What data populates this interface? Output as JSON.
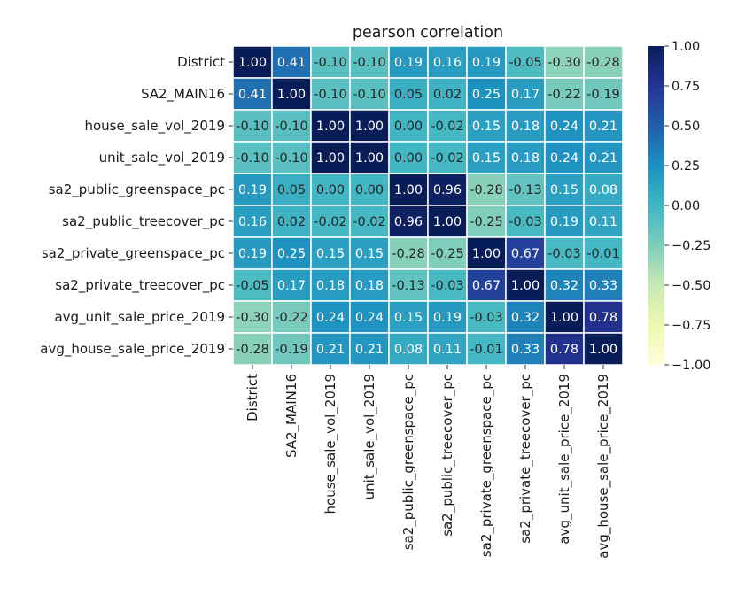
{
  "chart_data": {
    "type": "heatmap",
    "title": "pearson correlation",
    "variables": [
      "District",
      "SA2_MAIN16",
      "house_sale_vol_2019",
      "unit_sale_vol_2019",
      "sa2_public_greenspace_pc",
      "sa2_public_treecover_pc",
      "sa2_private_greenspace_pc",
      "sa2_private_treecover_pc",
      "avg_unit_sale_price_2019",
      "avg_house_sale_price_2019"
    ],
    "values": [
      [
        1.0,
        0.41,
        -0.1,
        -0.1,
        0.19,
        0.16,
        0.19,
        -0.05,
        -0.3,
        -0.28
      ],
      [
        0.41,
        1.0,
        -0.1,
        -0.1,
        0.05,
        0.02,
        0.25,
        0.17,
        -0.22,
        -0.19
      ],
      [
        -0.1,
        -0.1,
        1.0,
        1.0,
        0.0,
        -0.02,
        0.15,
        0.18,
        0.24,
        0.21
      ],
      [
        -0.1,
        -0.1,
        1.0,
        1.0,
        0.0,
        -0.02,
        0.15,
        0.18,
        0.24,
        0.21
      ],
      [
        0.19,
        0.05,
        0.0,
        0.0,
        1.0,
        0.96,
        -0.28,
        -0.13,
        0.15,
        0.08
      ],
      [
        0.16,
        0.02,
        -0.02,
        -0.02,
        0.96,
        1.0,
        -0.25,
        -0.03,
        0.19,
        0.11
      ],
      [
        0.19,
        0.25,
        0.15,
        0.15,
        -0.28,
        -0.25,
        1.0,
        0.67,
        -0.03,
        -0.01
      ],
      [
        -0.05,
        0.17,
        0.18,
        0.18,
        -0.13,
        -0.03,
        0.67,
        1.0,
        0.32,
        0.33
      ],
      [
        -0.3,
        -0.22,
        0.24,
        0.24,
        0.15,
        0.19,
        -0.03,
        0.32,
        1.0,
        0.78
      ],
      [
        -0.28,
        -0.19,
        0.21,
        0.21,
        0.08,
        0.11,
        -0.01,
        0.33,
        0.78,
        1.0
      ]
    ],
    "vmin": -1.0,
    "vmax": 1.0,
    "colormap": "YlGnBu",
    "colorbar_ticks": [
      "1.00",
      "0.75",
      "0.50",
      "0.25",
      "0.00",
      "−0.25",
      "−0.50",
      "−0.75",
      "−1.00"
    ],
    "annotations": true,
    "annotation_format": "0.00",
    "grid": true
  }
}
